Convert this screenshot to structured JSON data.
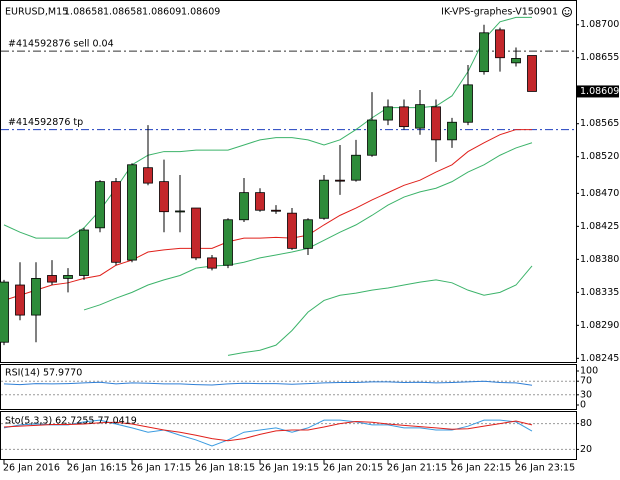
{
  "chart_data": [
    {
      "type": "candlestick",
      "symbol": "EURUSD,M15",
      "title": "IK-VPS-graphes-V150901",
      "categories": [
        "26 Jan 2016",
        null,
        null,
        null,
        "26 Jan 16:15",
        null,
        null,
        null,
        "26 Jan 17:15",
        null,
        null,
        null,
        "26 Jan 18:15",
        null,
        null,
        null,
        "26 Jan 19:15",
        null,
        null,
        null,
        "26 Jan 20:15",
        null,
        null,
        null,
        "26 Jan 21:15",
        null,
        null,
        null,
        "26 Jan 22:15",
        null,
        null,
        null,
        "26 Jan 23:15",
        null
      ],
      "open": [
        1.08267,
        1.08345,
        1.08304,
        1.08358,
        1.08354,
        1.08358,
        1.08423,
        1.08486,
        1.08379,
        1.08505,
        1.08486,
        1.08446,
        1.0845,
        1.08382,
        1.08372,
        1.08434,
        1.08471,
        1.08447,
        1.08443,
        1.08395,
        1.08436,
        1.08488,
        1.08488,
        1.08522,
        1.0857,
        1.08588,
        1.08559,
        1.08588,
        1.08543,
        1.08567,
        1.08636,
        1.08693,
        1.08648,
        1.08658
      ],
      "high": [
        1.08352,
        1.08376,
        1.08376,
        1.08379,
        1.08368,
        1.08423,
        1.08488,
        1.08491,
        1.08511,
        1.08563,
        1.08516,
        1.08495,
        1.0845,
        1.08386,
        1.08436,
        1.08491,
        1.08477,
        1.08454,
        1.0845,
        1.08436,
        1.08495,
        1.08536,
        1.08543,
        1.08608,
        1.08598,
        1.08598,
        1.08611,
        1.08598,
        1.08573,
        1.08645,
        1.087,
        1.08696,
        1.08669,
        1.08658
      ],
      "low": [
        1.08263,
        1.08297,
        1.08267,
        1.08345,
        1.08335,
        1.08352,
        1.08417,
        1.08372,
        1.08376,
        1.08481,
        1.08417,
        1.08417,
        1.08379,
        1.08365,
        1.08368,
        1.08431,
        1.08445,
        1.08442,
        1.08393,
        1.08386,
        1.08434,
        1.08468,
        1.08486,
        1.0852,
        1.08563,
        1.08557,
        1.0855,
        1.08513,
        1.08532,
        1.08563,
        1.08632,
        1.08636,
        1.08643,
        1.08609
      ],
      "close": [
        1.08349,
        1.08304,
        1.08354,
        1.08349,
        1.08358,
        1.0842,
        1.08486,
        1.08376,
        1.08509,
        1.08484,
        1.08445,
        1.08446,
        1.08382,
        1.08368,
        1.08434,
        1.08471,
        1.08447,
        1.08446,
        1.08395,
        1.08434,
        1.08488,
        1.08487,
        1.08522,
        1.0857,
        1.08588,
        1.08561,
        1.08591,
        1.08543,
        1.08567,
        1.08618,
        1.08689,
        1.08655,
        1.08654,
        1.08609
      ],
      "up_color": "#2e8b3a",
      "down_color": "#c3272b",
      "series": [
        {
          "color": "#3cb36a",
          "values": [
            1.08427,
            1.08417,
            1.08409,
            1.08409,
            1.08409,
            1.08423,
            1.08447,
            1.08477,
            1.08509,
            1.08522,
            1.08527,
            1.08527,
            1.08529,
            1.08529,
            1.08529,
            1.08536,
            1.08543,
            1.08546,
            1.08546,
            1.08543,
            1.08536,
            1.08543,
            1.08557,
            1.08573,
            1.08587,
            1.08587,
            1.08587,
            1.08589,
            1.08603,
            1.08636,
            1.0868,
            1.08704,
            1.0871,
            1.0871
          ]
        },
        {
          "color": "#e0201b",
          "values": [
            1.08324,
            1.08331,
            1.08338,
            1.08345,
            1.08348,
            1.08354,
            1.08358,
            1.08372,
            1.08379,
            1.0839,
            1.08393,
            1.08395,
            1.08395,
            1.08395,
            1.08404,
            1.08409,
            1.08409,
            1.0841,
            1.08409,
            1.08413,
            1.08427,
            1.0844,
            1.0845,
            1.08461,
            1.08471,
            1.08481,
            1.08488,
            1.08499,
            1.08509,
            1.08527,
            1.08539,
            1.0855,
            1.08557,
            1.08557
          ]
        },
        {
          "color": "#3cb36a",
          "values": [
            null,
            null,
            null,
            null,
            null,
            1.08311,
            1.08318,
            1.08327,
            1.08335,
            1.08345,
            1.08352,
            1.08358,
            1.08368,
            1.08371,
            1.08372,
            1.08376,
            1.08382,
            1.08386,
            1.0839,
            1.08395,
            1.08406,
            1.08417,
            1.08427,
            1.0844,
            1.08454,
            1.08465,
            1.08472,
            1.08477,
            1.08486,
            1.08499,
            1.08509,
            1.08522,
            1.08532,
            1.08539
          ]
        },
        {
          "color": "#3cb36a",
          "values": [
            null,
            null,
            null,
            null,
            null,
            null,
            null,
            null,
            null,
            null,
            null,
            null,
            null,
            null,
            1.08249,
            1.08253,
            1.08256,
            1.08263,
            1.08283,
            1.08308,
            1.08324,
            1.08331,
            1.08334,
            1.08338,
            1.08341,
            1.08345,
            1.08349,
            1.08352,
            1.08348,
            1.08338,
            1.08331,
            1.08335,
            1.08345,
            1.08371
          ]
        }
      ],
      "annotations": [
        {
          "label": "#414592876 sell 0.04",
          "value": 1.08664,
          "color": "#333333"
        },
        {
          "label": "#414592876 tp",
          "value": 1.08557,
          "color": "#1f3fbf"
        }
      ],
      "ylim": [
        1.0824,
        1.08731
      ],
      "yticks": [
        {
          "value": 1.087,
          "label": "1.08700"
        },
        1.08655,
        1.08565,
        {
          "value": 1.0852,
          "label": "1.08520"
        },
        {
          "value": 1.0847,
          "label": "1.08470"
        },
        1.08425,
        {
          "value": 1.0838,
          "label": "1.08380"
        },
        1.08335,
        {
          "value": 1.0829,
          "label": "1.08290"
        },
        1.08245
      ]
    },
    {
      "type": "line",
      "title": "RSI(14) 57.9770",
      "series": [
        {
          "color": "#2f7fd6",
          "values": [
            62,
            60,
            63,
            62,
            63,
            65,
            67,
            62,
            65,
            64,
            62,
            62,
            60,
            59,
            62,
            64,
            63,
            63,
            61,
            63,
            65,
            66,
            66,
            68,
            68,
            66,
            67,
            65,
            66,
            68,
            70,
            66,
            65,
            57.977
          ]
        }
      ],
      "ylim": [
        0,
        100
      ],
      "yticks": [
        100,
        70,
        30,
        0
      ],
      "levels": [
        70,
        30
      ]
    },
    {
      "type": "line",
      "title": "Sto(5,3,3) 62.7255 77.0419",
      "series": [
        {
          "color": "#3a9be0",
          "values": [
            70,
            77,
            79,
            77,
            77,
            84,
            88,
            79,
            70,
            60,
            65,
            53,
            42,
            28,
            42,
            60,
            65,
            70,
            60,
            70,
            88,
            88,
            84,
            77,
            77,
            70,
            70,
            65,
            65,
            74,
            88,
            88,
            84,
            62.7255
          ]
        },
        {
          "color": "#e0201b",
          "values": [
            72,
            74,
            76,
            78,
            78,
            79,
            82,
            83,
            79,
            72,
            65,
            60,
            53,
            45,
            40,
            45,
            55,
            63,
            65,
            65,
            72,
            80,
            85,
            83,
            79,
            76,
            73,
            70,
            67,
            68,
            74,
            80,
            86,
            77.0419
          ]
        }
      ],
      "ylim": [
        0,
        100
      ],
      "yticks": [
        80,
        20
      ],
      "levels": [
        80,
        20
      ]
    }
  ]
}
